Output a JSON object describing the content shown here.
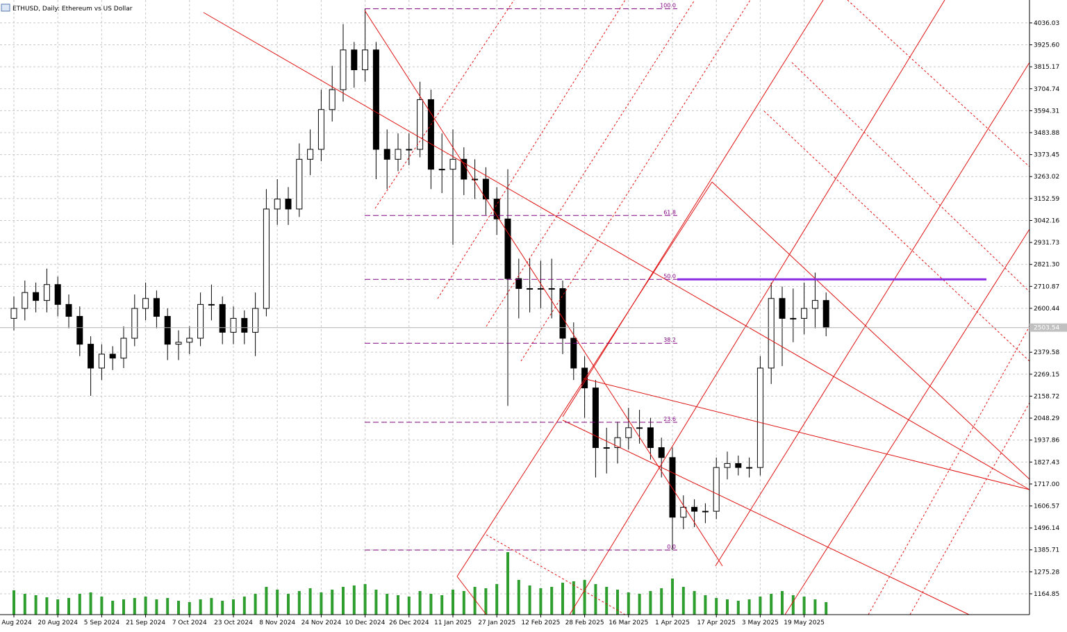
{
  "chart_data": {
    "type": "candlestick",
    "title": "ETHUSD, Daily: Ethereum vs US Dollar",
    "categories": [
      "Aug 2024",
      null,
      null,
      null,
      "20 Aug 2024",
      null,
      null,
      null,
      "5 Sep 2024",
      null,
      null,
      null,
      "21 Sep 2024",
      null,
      null,
      null,
      "7 Oct 2024",
      null,
      null,
      null,
      "23 Oct 2024",
      null,
      null,
      null,
      "8 Nov 2024",
      null,
      null,
      null,
      "24 Nov 2024",
      null,
      null,
      null,
      "10 Dec 2024",
      null,
      null,
      null,
      "26 Dec 2024",
      null,
      null,
      null,
      "11 Jan 2025",
      null,
      null,
      null,
      "27 Jan 2025",
      null,
      null,
      null,
      "12 Feb 2025",
      null,
      null,
      null,
      "28 Feb 2025",
      null,
      null,
      null,
      "16 Mar 2025",
      null,
      null,
      null,
      "1 Apr 2025",
      null,
      null,
      null,
      "17 Apr 2025",
      null,
      null,
      null,
      "3 May 2025",
      null,
      null,
      null,
      "19 May 2025",
      null,
      null
    ],
    "open": [
      2550,
      2600,
      2680,
      2640,
      2720,
      2620,
      2560,
      2420,
      2300,
      2370,
      2350,
      2450,
      2600,
      2650,
      2560,
      2420,
      2430,
      2450,
      2620,
      2620,
      2480,
      2550,
      2480,
      2600,
      3100,
      3150,
      3100,
      3350,
      3400,
      3600,
      3700,
      3900,
      3800,
      3900,
      3400,
      3350,
      3400,
      3400,
      3650,
      3300,
      3300,
      3350,
      3250,
      3250,
      3150,
      3050,
      2750,
      2700,
      2700,
      2700,
      2700,
      2450,
      2300,
      2200,
      1900,
      1900,
      1950,
      2000,
      2000,
      1900,
      1850,
      1550,
      1600,
      1580,
      1580,
      1800,
      1820,
      1800,
      1800,
      2300,
      2650,
      2550,
      2550,
      2600,
      2640
    ],
    "high": [
      2660,
      2740,
      2730,
      2800,
      2760,
      2670,
      2610,
      2460,
      2420,
      2410,
      2510,
      2670,
      2730,
      2690,
      2600,
      2490,
      2510,
      2680,
      2720,
      2660,
      2610,
      2590,
      2680,
      3200,
      3250,
      3210,
      3430,
      3500,
      3700,
      3820,
      4030,
      3940,
      4107,
      3940,
      3500,
      3480,
      3480,
      3740,
      3700,
      3480,
      3500,
      3410,
      3350,
      3310,
      3210,
      3300,
      2850,
      2850,
      2840,
      2850,
      2740,
      2530,
      2360,
      2240,
      2000,
      2030,
      2100,
      2090,
      2050,
      1950,
      1900,
      1660,
      1640,
      1620,
      1850,
      1880,
      1860,
      1850,
      2360,
      2730,
      2710,
      2700,
      2730,
      2780,
      2680
    ],
    "low": [
      2490,
      2540,
      2580,
      2580,
      2560,
      2500,
      2360,
      2160,
      2240,
      2290,
      2300,
      2410,
      2540,
      2500,
      2340,
      2340,
      2370,
      2410,
      2540,
      2420,
      2420,
      2420,
      2360,
      2560,
      3020,
      3020,
      3060,
      3270,
      3340,
      3540,
      3640,
      3710,
      3740,
      3250,
      3200,
      3290,
      3320,
      3360,
      3200,
      3180,
      2920,
      3170,
      3150,
      3070,
      2970,
      2110,
      2550,
      2580,
      2600,
      2550,
      2370,
      2240,
      2050,
      1750,
      1770,
      1820,
      1890,
      1920,
      1840,
      1750,
      1385,
      1490,
      1500,
      1520,
      1540,
      1740,
      1760,
      1750,
      1760,
      2220,
      2310,
      2430,
      2470,
      2500,
      2460
    ],
    "close": [
      2600,
      2680,
      2640,
      2720,
      2620,
      2560,
      2420,
      2300,
      2370,
      2350,
      2450,
      2600,
      2650,
      2560,
      2420,
      2430,
      2450,
      2620,
      2620,
      2480,
      2550,
      2480,
      2600,
      3100,
      3150,
      3100,
      3350,
      3400,
      3600,
      3700,
      3900,
      3800,
      3900,
      3400,
      3350,
      3400,
      3400,
      3650,
      3300,
      3300,
      3350,
      3250,
      3250,
      3150,
      3050,
      2750,
      2700,
      2700,
      2700,
      2700,
      2450,
      2300,
      2200,
      1900,
      1900,
      1950,
      2000,
      2000,
      1900,
      1850,
      1550,
      1600,
      1580,
      1580,
      1800,
      1820,
      1800,
      1800,
      2300,
      2650,
      2550,
      2550,
      2600,
      2640,
      2503.54
    ],
    "volume": [
      35,
      30,
      28,
      25,
      22,
      24,
      30,
      32,
      26,
      20,
      22,
      24,
      26,
      22,
      24,
      20,
      18,
      22,
      24,
      20,
      22,
      26,
      30,
      40,
      36,
      30,
      34,
      38,
      32,
      36,
      40,
      42,
      44,
      36,
      30,
      28,
      26,
      34,
      30,
      28,
      36,
      34,
      40,
      38,
      44,
      90,
      50,
      42,
      38,
      40,
      46,
      48,
      50,
      44,
      40,
      36,
      32,
      30,
      34,
      38,
      52,
      40,
      34,
      28,
      24,
      22,
      20,
      22,
      26,
      30,
      34,
      28,
      26,
      22,
      18
    ],
    "ylim": [
      1060,
      4151
    ],
    "yticks": [
      4036.03,
      {
        "value": 3925.6,
        "label": "3925.60"
      },
      3815.17,
      3704.74,
      3594.31,
      3483.88,
      3373.45,
      3263.02,
      3152.59,
      3042.16,
      2931.73,
      {
        "value": 2821.3,
        "label": "2821.30"
      },
      2710.87,
      2600.44,
      2379.58,
      2269.15,
      2158.72,
      2048.29,
      1937.86,
      1827.43,
      {
        "value": 1717,
        "label": "1717.00"
      },
      1606.57,
      1496.14,
      1385.71,
      1275.28,
      1164.85
    ],
    "last_price": 2503.54,
    "fibo": {
      "high": 4107,
      "low": 1385,
      "color": "#800080",
      "levels": [
        {
          "value": 100,
          "label": "100.0"
        },
        61.8,
        {
          "value": 50,
          "label": "50.0"
        },
        38.2,
        23.6,
        {
          "value": 0,
          "label": "0.0"
        }
      ]
    },
    "grid": true,
    "up_color": "#ffffff",
    "down_color": "#000000",
    "volume_color": "#2e9e2e"
  }
}
